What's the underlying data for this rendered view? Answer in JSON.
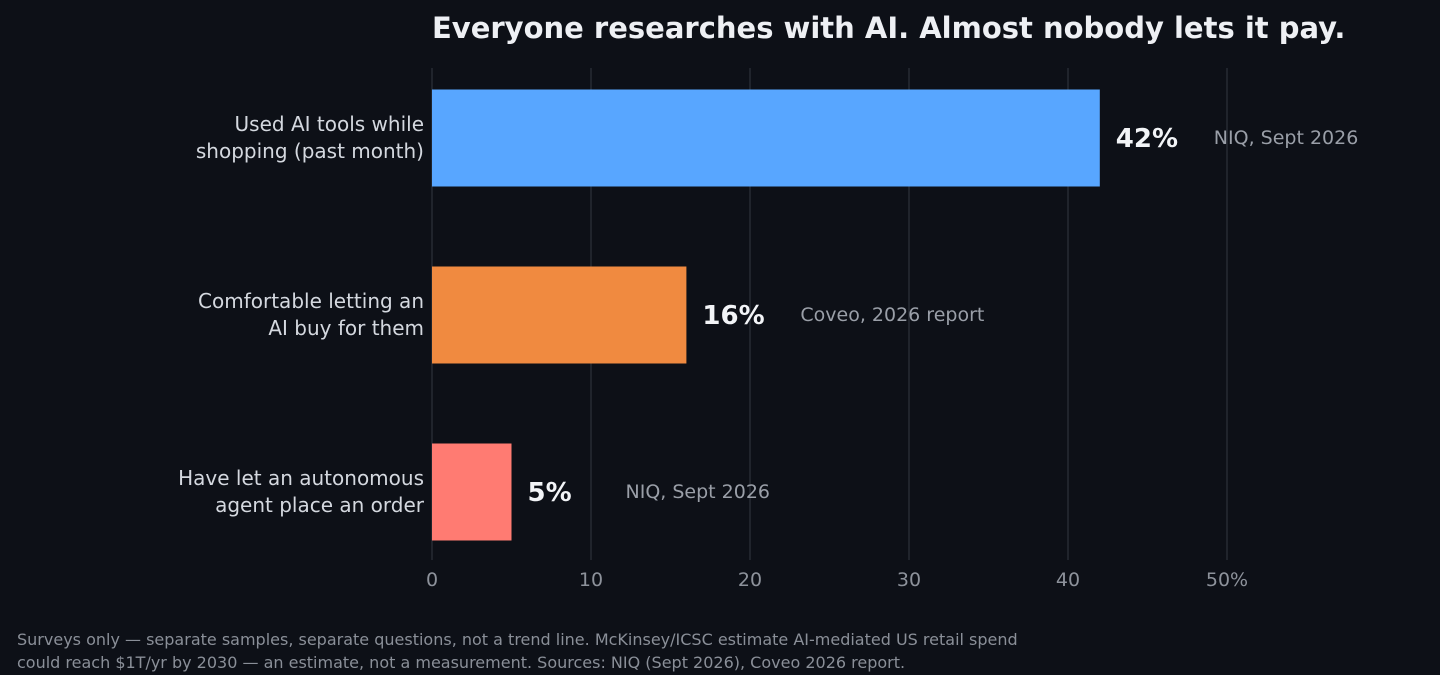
{
  "chart_data": {
    "type": "bar",
    "orientation": "horizontal",
    "title": "Everyone researches with AI. Almost nobody lets it pay.",
    "categories": [
      [
        "Used AI tools while",
        "shopping (past month)"
      ],
      [
        "Comfortable letting an",
        "AI buy for them"
      ],
      [
        "Have let an autonomous",
        "agent place an order"
      ]
    ],
    "values": [
      42,
      16,
      5
    ],
    "value_labels": [
      "42%",
      "16%",
      "5%"
    ],
    "sources": [
      "NIQ, Sept 2026",
      "Coveo, 2026 report",
      "NIQ, Sept 2026"
    ],
    "colors": [
      "#58a6ff",
      "#f08a40",
      "#ff7b72"
    ],
    "xlim": [
      0,
      50
    ],
    "xticks": [
      0,
      10,
      20,
      30,
      40,
      50
    ],
    "xtick_labels": [
      "0",
      "10",
      "20",
      "30",
      "40",
      "50%"
    ],
    "grid": "vertical",
    "legend": "none"
  },
  "footnote": "Surveys only — separate samples, separate questions, not a trend line. McKinsey/ICSC estimate AI-mediated US retail spend could reach $1T/yr by 2030 — an estimate, not a measurement. Sources: NIQ (Sept 2026), Coveo 2026 report.",
  "colors": {
    "background": "#0d1017",
    "grid": "#2a2f38",
    "text_primary": "#eef0f4",
    "text_muted": "#8d929b"
  }
}
